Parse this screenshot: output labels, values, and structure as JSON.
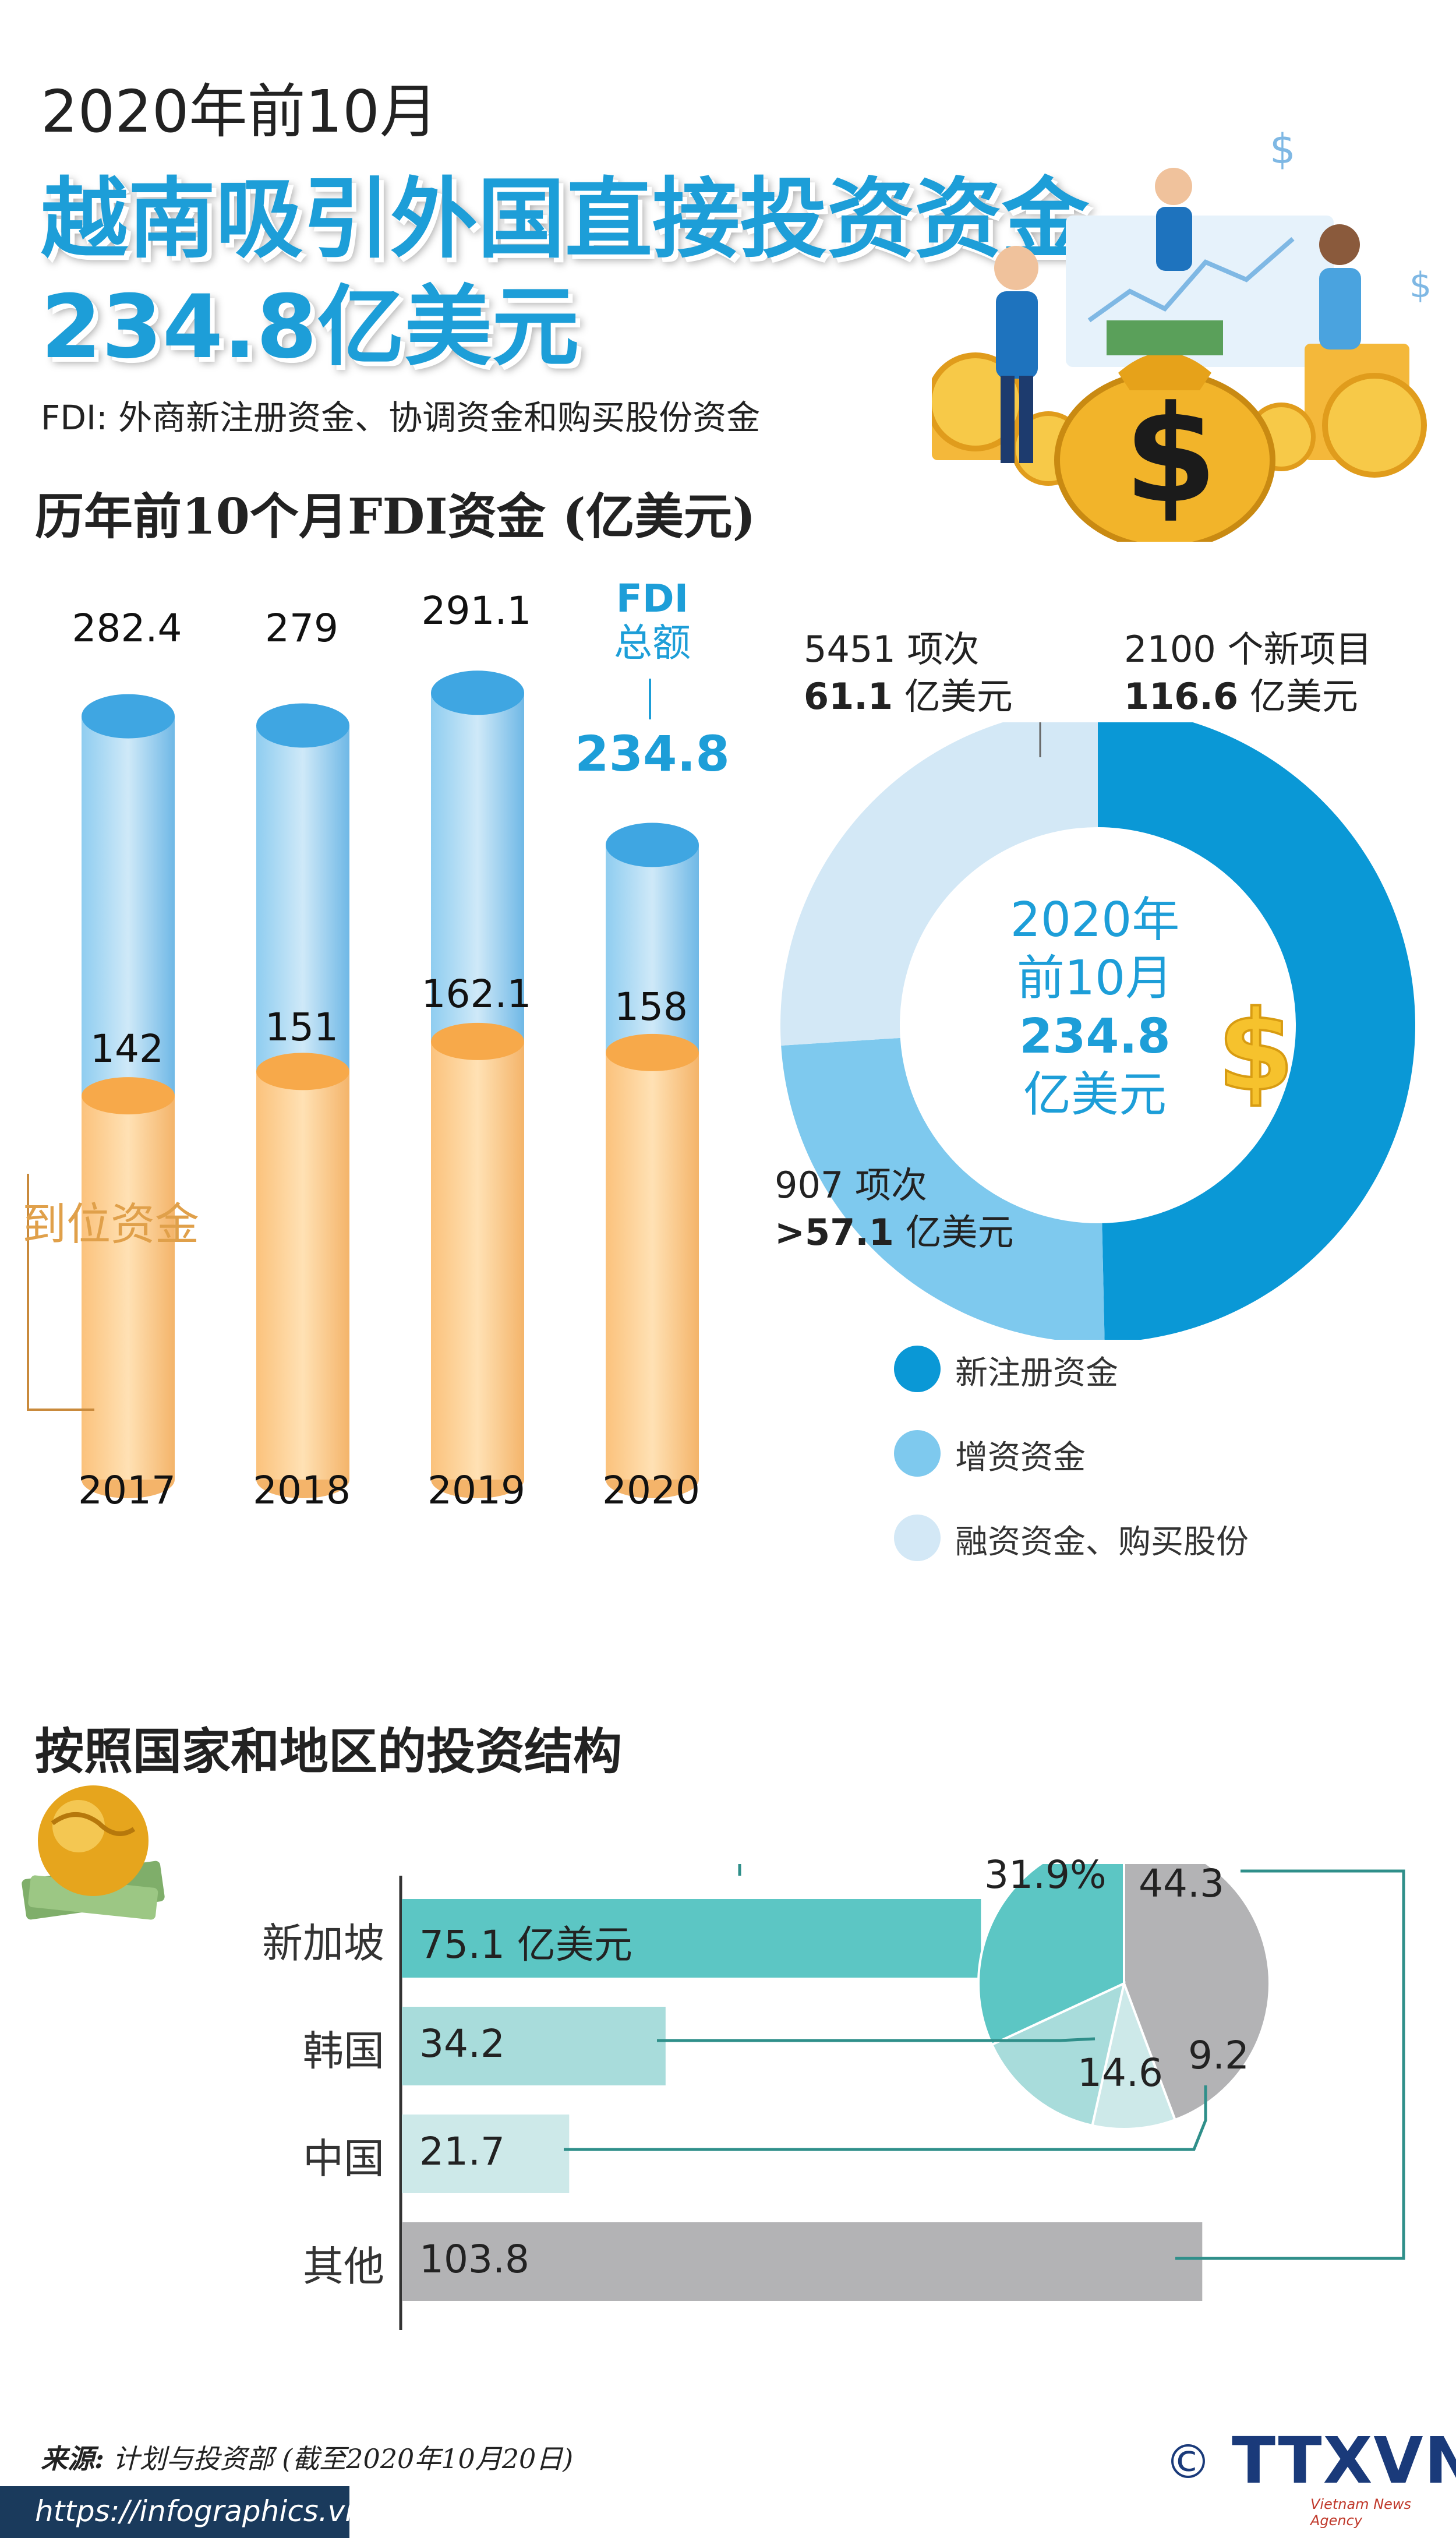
{
  "header": {
    "period": "2020年前10月",
    "headline_line1": "越南吸引外国直接投资资金",
    "headline_line2": "234.8亿美元",
    "definition": "FDI: 外商新注册资金、协调资金和购买股份资金"
  },
  "section1": {
    "title": "历年前10个月FDI资金 (亿美元)",
    "fdi_total_label": "FDI\n总额",
    "fdi_total_label_line1": "FDI",
    "fdi_total_label_line2": "总额",
    "fdi_total_value": "234.8",
    "disbursed_label": "到位资金"
  },
  "chart_data": [
    {
      "type": "bar",
      "title": "历年前10个月FDI资金 (亿美元)",
      "categories": [
        "2017",
        "2018",
        "2019",
        "2020"
      ],
      "series": [
        {
          "name": "FDI 总额",
          "values": [
            282.4,
            279,
            291.1,
            234.8
          ]
        },
        {
          "name": "到位资金",
          "values": [
            142,
            151,
            162.1,
            158
          ]
        }
      ],
      "value_labels_total": [
        "282.4",
        "279",
        "291.1",
        "234.8"
      ],
      "value_labels_disbursed": [
        "142",
        "151",
        "162.1",
        "158"
      ],
      "colors": {
        "total": "#8ccbee",
        "disbursed": "#fbc88a"
      }
    },
    {
      "type": "pie",
      "title": "",
      "center_text": [
        "2020年",
        "前10月",
        "234.8",
        "亿美元"
      ],
      "categories": [
        "新注册资金",
        "增资资金",
        "融资资金、购买股份"
      ],
      "values": [
        116.6,
        57.1,
        61.1
      ],
      "projects": [
        "2100 个新项目",
        "907 项次",
        "5451 项次"
      ],
      "value_labels": [
        "116.6",
        ">57.1",
        "61.1"
      ],
      "unit": "亿美元",
      "colors": [
        "#0a98d6",
        "#7ec9ee",
        "#d3e8f6"
      ]
    },
    {
      "type": "bar",
      "title": "按照国家和地区的投资结构",
      "categories": [
        "新加坡",
        "韩国",
        "中国",
        "其他"
      ],
      "values": [
        75.1,
        34.2,
        21.7,
        103.8
      ],
      "value_labels": [
        "75.1 亿美元",
        "34.2",
        "21.7",
        "103.8"
      ],
      "colors": [
        "#5cc6c4",
        "#a8dcdb",
        "#cde9e9",
        "#b3b3b5"
      ]
    },
    {
      "type": "pie",
      "title": "",
      "categories": [
        "新加坡",
        "韩国",
        "中国",
        "其他"
      ],
      "values": [
        31.9,
        14.6,
        9.2,
        44.3
      ],
      "value_labels": [
        "31.9%",
        "14.6",
        "9.2",
        "44.3"
      ],
      "colors": [
        "#5cc6c4",
        "#a8dcdb",
        "#cde9e9",
        "#b3b3b5"
      ]
    }
  ],
  "donut": {
    "center_line1": "2020年",
    "center_line2": "前10月",
    "center_line3": "234.8",
    "center_line4": "亿美元",
    "new_projects": "2100 个新项目",
    "new_value": "116.6",
    "increase_projects": "907 项次",
    "increase_value": ">57.1",
    "shares_projects": "5451 项次",
    "shares_value": "61.1",
    "unit": "亿美元"
  },
  "legend": {
    "item1": "新注册资金",
    "item2": "增资资金",
    "item3": "融资资金、购买股份"
  },
  "section2": {
    "title": "按照国家和地区的投资结构"
  },
  "countries": {
    "c1": "新加坡",
    "c2": "韩国",
    "c3": "中国",
    "c4": "其他",
    "v1": "75.1 亿美元",
    "v2": "34.2",
    "v3": "21.7",
    "v4": "103.8",
    "p1": "31.9%",
    "p2": "14.6",
    "p3": "9.2",
    "p4": "44.3"
  },
  "footer": {
    "source_label": "来源:",
    "source_text": " 计划与投资部 (截至2020年10月20日)",
    "url": "https://infographics.vn",
    "copyright": "©",
    "logo": "TTXVN",
    "agency": "Vietnam News Agency"
  },
  "icons": [
    "money-bag-icon",
    "dollar-sign-icon",
    "globe-money-icon",
    "coin-stack-icon",
    "businessman-icon"
  ]
}
